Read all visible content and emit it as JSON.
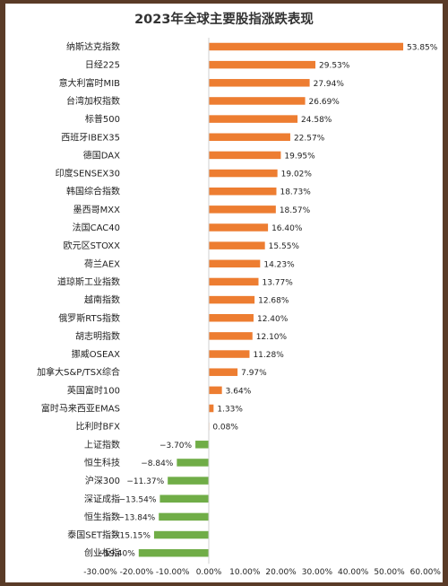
{
  "chart_data": {
    "type": "bar",
    "orientation": "horizontal",
    "title": "2023年全球主要股指涨跌表现",
    "xlabel": "",
    "ylabel": "",
    "xlim": [
      -30,
      60
    ],
    "x_ticks": [
      "-30.00%",
      "-20.00%",
      "-10.00%",
      "0.00%",
      "10.00%",
      "20.00%",
      "30.00%",
      "40.00%",
      "50.00%",
      "60.00%"
    ],
    "grid": false,
    "categories": [
      "纳斯达克指数",
      "日经225",
      "意大利富时MIB",
      "台湾加权指数",
      "标普500",
      "西班牙IBEX35",
      "德国DAX",
      "印度SENSEX30",
      "韩国综合指数",
      "墨西哥MXX",
      "法国CAC40",
      "欧元区STOXX",
      "荷兰AEX",
      "道琼斯工业指数",
      "越南指数",
      "俄罗斯RTS指数",
      "胡志明指数",
      "挪威OSEAX",
      "加拿大S&P/TSX综合",
      "英国富时100",
      "富时马来西亚EMAS",
      "比利时BFX",
      "上证指数",
      "恒生科技",
      "沪深300",
      "深证成指",
      "恒生指数",
      "泰国SET指数",
      "创业板指"
    ],
    "values": [
      53.85,
      29.53,
      27.94,
      26.69,
      24.58,
      22.57,
      19.95,
      19.02,
      18.73,
      18.57,
      16.4,
      15.55,
      14.23,
      13.77,
      12.68,
      12.4,
      12.1,
      11.28,
      7.97,
      3.64,
      1.33,
      0.08,
      -3.7,
      -8.84,
      -11.37,
      -13.54,
      -13.84,
      -15.15,
      -19.4
    ],
    "value_labels": [
      "53.85%",
      "29.53%",
      "27.94%",
      "26.69%",
      "24.58%",
      "22.57%",
      "19.95%",
      "19.02%",
      "18.73%",
      "18.57%",
      "16.40%",
      "15.55%",
      "14.23%",
      "13.77%",
      "12.68%",
      "12.40%",
      "12.10%",
      "11.28%",
      "7.97%",
      "3.64%",
      "1.33%",
      "0.08%",
      "−3.70%",
      "−8.84%",
      "−11.37%",
      "−13.54%",
      "−13.84%",
      "−15.15%",
      "−19.40%"
    ],
    "colors": {
      "positive": "#ed7d31",
      "negative": "#70ad47"
    }
  }
}
